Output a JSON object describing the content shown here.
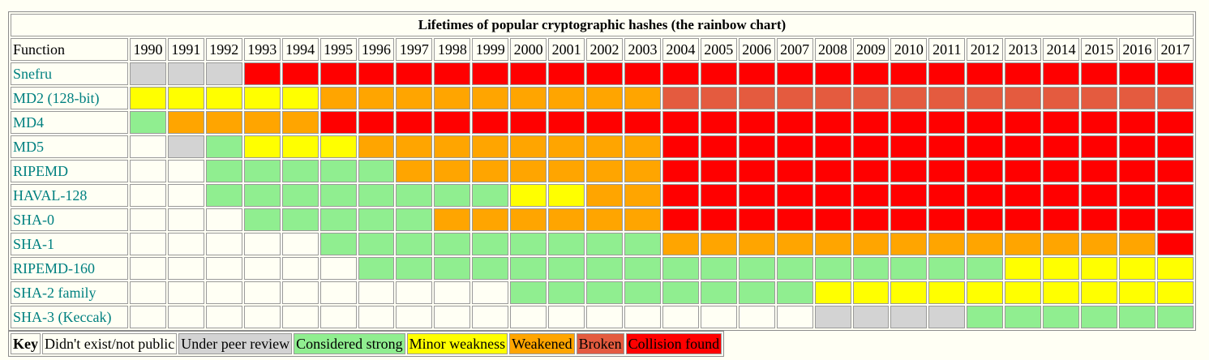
{
  "title": "Lifetimes of popular cryptographic hashes (the rainbow chart)",
  "header_label": "Function",
  "years": [
    "1990",
    "1991",
    "1992",
    "1993",
    "1994",
    "1995",
    "1996",
    "1997",
    "1998",
    "1999",
    "2000",
    "2001",
    "2002",
    "2003",
    "2004",
    "2005",
    "2006",
    "2007",
    "2008",
    "2009",
    "2010",
    "2011",
    "2012",
    "2013",
    "2014",
    "2015",
    "2016",
    "2017"
  ],
  "status_colors": {
    "none": "#fffff4",
    "review": "#d3d3d3",
    "strong": "#90ee90",
    "minor": "#ffff00",
    "weakened": "#ffa500",
    "broken": "#e45b3f",
    "collision": "#ff0000"
  },
  "rows": [
    {
      "name": "Snefru",
      "cells": [
        "review",
        "review",
        "review",
        "collision",
        "collision",
        "collision",
        "collision",
        "collision",
        "collision",
        "collision",
        "collision",
        "collision",
        "collision",
        "collision",
        "collision",
        "collision",
        "collision",
        "collision",
        "collision",
        "collision",
        "collision",
        "collision",
        "collision",
        "collision",
        "collision",
        "collision",
        "collision",
        "collision"
      ]
    },
    {
      "name": "MD2 (128-bit)",
      "cells": [
        "minor",
        "minor",
        "minor",
        "minor",
        "minor",
        "weakened",
        "weakened",
        "weakened",
        "weakened",
        "weakened",
        "weakened",
        "weakened",
        "weakened",
        "weakened",
        "broken",
        "broken",
        "broken",
        "broken",
        "broken",
        "broken",
        "broken",
        "broken",
        "broken",
        "broken",
        "broken",
        "broken",
        "broken",
        "broken"
      ]
    },
    {
      "name": "MD4",
      "cells": [
        "strong",
        "weakened",
        "weakened",
        "weakened",
        "weakened",
        "collision",
        "collision",
        "collision",
        "collision",
        "collision",
        "collision",
        "collision",
        "collision",
        "collision",
        "collision",
        "collision",
        "collision",
        "collision",
        "collision",
        "collision",
        "collision",
        "collision",
        "collision",
        "collision",
        "collision",
        "collision",
        "collision",
        "collision"
      ]
    },
    {
      "name": "MD5",
      "cells": [
        "none",
        "review",
        "strong",
        "minor",
        "minor",
        "minor",
        "weakened",
        "weakened",
        "weakened",
        "weakened",
        "weakened",
        "weakened",
        "weakened",
        "weakened",
        "collision",
        "collision",
        "collision",
        "collision",
        "collision",
        "collision",
        "collision",
        "collision",
        "collision",
        "collision",
        "collision",
        "collision",
        "collision",
        "collision"
      ]
    },
    {
      "name": "RIPEMD",
      "cells": [
        "none",
        "none",
        "strong",
        "strong",
        "strong",
        "strong",
        "strong",
        "weakened",
        "weakened",
        "weakened",
        "weakened",
        "weakened",
        "weakened",
        "weakened",
        "collision",
        "collision",
        "collision",
        "collision",
        "collision",
        "collision",
        "collision",
        "collision",
        "collision",
        "collision",
        "collision",
        "collision",
        "collision",
        "collision"
      ]
    },
    {
      "name": "HAVAL-128",
      "cells": [
        "none",
        "none",
        "strong",
        "strong",
        "strong",
        "strong",
        "strong",
        "strong",
        "strong",
        "strong",
        "minor",
        "minor",
        "weakened",
        "weakened",
        "collision",
        "collision",
        "collision",
        "collision",
        "collision",
        "collision",
        "collision",
        "collision",
        "collision",
        "collision",
        "collision",
        "collision",
        "collision",
        "collision"
      ]
    },
    {
      "name": "SHA-0",
      "cells": [
        "none",
        "none",
        "none",
        "strong",
        "strong",
        "strong",
        "strong",
        "strong",
        "weakened",
        "weakened",
        "weakened",
        "weakened",
        "weakened",
        "weakened",
        "collision",
        "collision",
        "collision",
        "collision",
        "collision",
        "collision",
        "collision",
        "collision",
        "collision",
        "collision",
        "collision",
        "collision",
        "collision",
        "collision"
      ]
    },
    {
      "name": "SHA-1",
      "cells": [
        "none",
        "none",
        "none",
        "none",
        "none",
        "strong",
        "strong",
        "strong",
        "strong",
        "strong",
        "strong",
        "strong",
        "strong",
        "strong",
        "weakened",
        "weakened",
        "weakened",
        "weakened",
        "weakened",
        "weakened",
        "weakened",
        "weakened",
        "weakened",
        "weakened",
        "weakened",
        "weakened",
        "weakened",
        "collision"
      ]
    },
    {
      "name": "RIPEMD-160",
      "cells": [
        "none",
        "none",
        "none",
        "none",
        "none",
        "none",
        "strong",
        "strong",
        "strong",
        "strong",
        "strong",
        "strong",
        "strong",
        "strong",
        "strong",
        "strong",
        "strong",
        "strong",
        "strong",
        "strong",
        "strong",
        "strong",
        "strong",
        "minor",
        "minor",
        "minor",
        "minor",
        "minor"
      ]
    },
    {
      "name": "SHA-2 family",
      "cells": [
        "none",
        "none",
        "none",
        "none",
        "none",
        "none",
        "none",
        "none",
        "none",
        "none",
        "strong",
        "strong",
        "strong",
        "strong",
        "strong",
        "strong",
        "strong",
        "strong",
        "minor",
        "minor",
        "minor",
        "minor",
        "minor",
        "minor",
        "minor",
        "minor",
        "minor",
        "minor"
      ]
    },
    {
      "name": "SHA-3 (Keccak)",
      "cells": [
        "none",
        "none",
        "none",
        "none",
        "none",
        "none",
        "none",
        "none",
        "none",
        "none",
        "none",
        "none",
        "none",
        "none",
        "none",
        "none",
        "none",
        "none",
        "review",
        "review",
        "review",
        "review",
        "strong",
        "strong",
        "strong",
        "strong",
        "strong",
        "strong"
      ]
    }
  ],
  "key": {
    "label": "Key",
    "items": [
      {
        "status": "none",
        "label": "Didn't exist/not public"
      },
      {
        "status": "review",
        "label": "Under peer review"
      },
      {
        "status": "strong",
        "label": "Considered strong"
      },
      {
        "status": "minor",
        "label": "Minor weakness"
      },
      {
        "status": "weakened",
        "label": "Weakened"
      },
      {
        "status": "broken",
        "label": "Broken"
      },
      {
        "status": "collision",
        "label": "Collision found"
      }
    ]
  }
}
